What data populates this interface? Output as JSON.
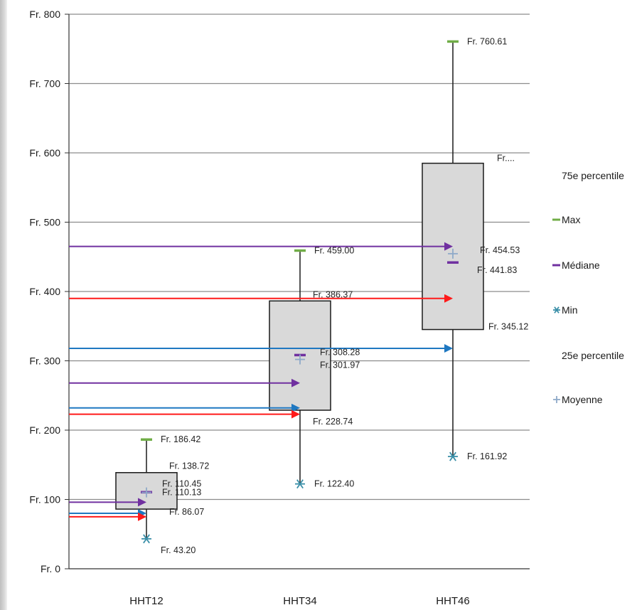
{
  "chart_data": {
    "type": "boxplot",
    "title": "",
    "xlabel": "",
    "ylabel": "",
    "ylim": [
      0,
      800
    ],
    "y_ticks": [
      0,
      100,
      200,
      300,
      400,
      500,
      600,
      700,
      800
    ],
    "y_tick_labels": [
      "Fr. 0",
      "Fr. 100",
      "Fr. 200",
      "Fr. 300",
      "Fr. 400",
      "Fr. 500",
      "Fr. 600",
      "Fr. 700",
      "Fr. 800"
    ],
    "grid": true,
    "categories": [
      "HHT12",
      "HHT34",
      "HHT46"
    ],
    "boxes": [
      {
        "category": "HHT12",
        "max": 186.42,
        "q3": 138.72,
        "median": 110.45,
        "mean": 110.13,
        "q1": 86.07,
        "min": 43.2,
        "labels": {
          "max": "Fr. 186.42",
          "q3": "Fr. 138.72",
          "median": "Fr. 110.45",
          "mean": "Fr. 110.13",
          "q1": "Fr. 86.07",
          "min": "Fr. 43.20"
        }
      },
      {
        "category": "HHT34",
        "max": 459.0,
        "q3": 386.37,
        "median": 308.28,
        "mean": 301.97,
        "q1": 228.74,
        "min": 122.4,
        "labels": {
          "max": "Fr. 459.00",
          "q3": "Fr. 386.37",
          "median": "Fr. 308.28",
          "mean": "Fr. 301.97",
          "q1": "Fr. 228.74",
          "min": "Fr. 122.40"
        }
      },
      {
        "category": "HHT46",
        "max": 760.61,
        "q3": 585,
        "median": 441.83,
        "mean": 454.53,
        "q1": 345.12,
        "min": 161.92,
        "labels": {
          "max": "Fr. 760.61",
          "q3": "Fr....",
          "median": "Fr. 441.83",
          "mean": "Fr. 454.53",
          "q1": "Fr. 345.12",
          "min": "Fr. 161.92"
        }
      }
    ],
    "arrows": [
      {
        "color": "purple",
        "value": 96,
        "to_category": "HHT12"
      },
      {
        "color": "blue",
        "value": 80,
        "to_category": "HHT12"
      },
      {
        "color": "red",
        "value": 75,
        "to_category": "HHT12"
      },
      {
        "color": "purple",
        "value": 268,
        "to_category": "HHT34"
      },
      {
        "color": "blue",
        "value": 232,
        "to_category": "HHT34"
      },
      {
        "color": "red",
        "value": 223,
        "to_category": "HHT34"
      },
      {
        "color": "purple",
        "value": 465,
        "to_category": "HHT46"
      },
      {
        "color": "red",
        "value": 390,
        "to_category": "HHT46"
      },
      {
        "color": "blue",
        "value": 318,
        "to_category": "HHT46"
      }
    ],
    "legend": {
      "placement": "right",
      "entries": [
        {
          "key": "q3",
          "label": "75e percentile",
          "marker": "none"
        },
        {
          "key": "max",
          "label": "Max",
          "marker": "dash-green"
        },
        {
          "key": "median",
          "label": "Médiane",
          "marker": "dash-purple"
        },
        {
          "key": "min",
          "label": "Min",
          "marker": "asterisk-teal"
        },
        {
          "key": "q1",
          "label": "25e percentile",
          "marker": "none"
        },
        {
          "key": "mean",
          "label": "Moyenne",
          "marker": "plus-gray"
        }
      ]
    }
  },
  "colors": {
    "box_fill": "#d9d9d9",
    "box_stroke": "#1a1a1a",
    "grid": "#8c8c8c",
    "max_marker": "#70ad47",
    "median_marker": "#7030a0",
    "min_marker": "#3a8fa8",
    "mean_marker": "#8faac9",
    "arrow_purple": "#7030a0",
    "arrow_blue": "#1f78c1",
    "arrow_red": "#ff1a1a"
  }
}
